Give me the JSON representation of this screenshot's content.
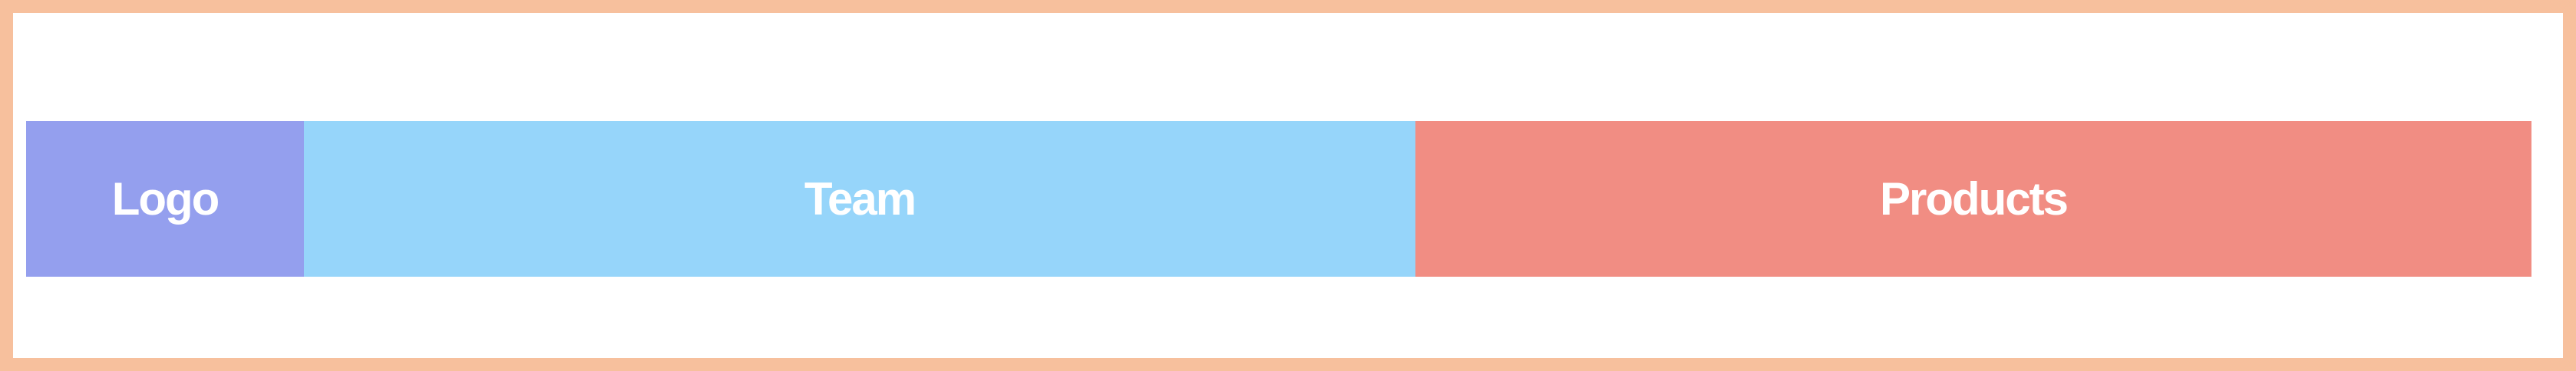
{
  "nav": {
    "logo": {
      "label": "Logo",
      "color": "#949fee"
    },
    "items": [
      {
        "label": "Team",
        "color": "#96d5fa"
      },
      {
        "label": "Products",
        "color": "#f18d83"
      }
    ]
  },
  "frame": {
    "border_color": "#f7c09d"
  }
}
